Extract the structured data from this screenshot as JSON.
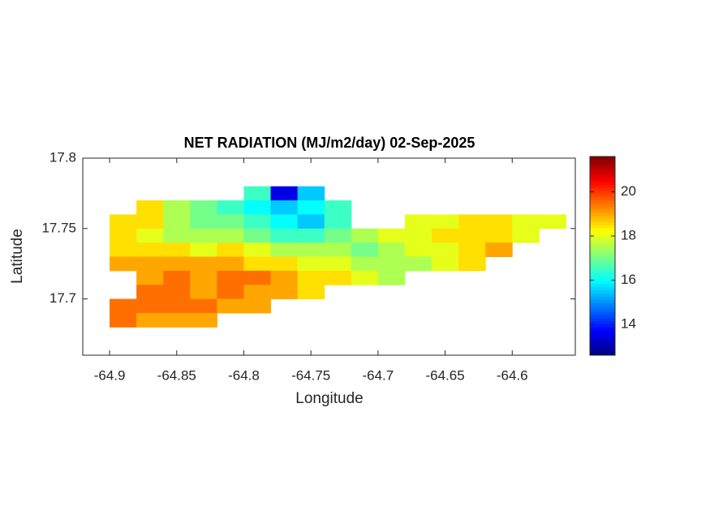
{
  "chart_data": {
    "type": "heatmap",
    "title": "NET RADIATION (MJ/m2/day) 02-Sep-2025",
    "xlabel": "Longitude",
    "ylabel": "Latitude",
    "xlim": [
      -64.92,
      -64.553
    ],
    "ylim": [
      17.66,
      17.8
    ],
    "xticks": [
      -64.9,
      -64.85,
      -64.8,
      -64.75,
      -64.7,
      -64.65,
      -64.6
    ],
    "yticks": [
      17.7,
      17.75,
      17.8
    ],
    "x": [
      -64.89,
      -64.87,
      -64.85,
      -64.83,
      -64.81,
      -64.79,
      -64.77,
      -64.75,
      -64.73,
      -64.71,
      -64.69,
      -64.67,
      -64.65,
      -64.63,
      -64.61,
      -64.59,
      -64.57
    ],
    "y": [
      17.775,
      17.765,
      17.755,
      17.745,
      17.735,
      17.725,
      17.715,
      17.705,
      17.695,
      17.685
    ],
    "z": [
      [
        null,
        null,
        null,
        null,
        null,
        16.5,
        13.5,
        15.5,
        null,
        null,
        null,
        null,
        null,
        null,
        null,
        null,
        null
      ],
      [
        null,
        18.5,
        17.5,
        17,
        16.5,
        16,
        15.5,
        16,
        16.5,
        null,
        null,
        null,
        null,
        null,
        null,
        null,
        null
      ],
      [
        18.5,
        18.5,
        17.5,
        17,
        17,
        16.5,
        16,
        15.5,
        16.5,
        null,
        null,
        18,
        18,
        18.5,
        18.5,
        18,
        18
      ],
      [
        18.5,
        18,
        17.5,
        17.5,
        17.5,
        17,
        16.5,
        16.5,
        17,
        17.5,
        18,
        18,
        18.5,
        18.5,
        18.5,
        18,
        null
      ],
      [
        18.5,
        18.5,
        18.5,
        18,
        18.5,
        18,
        17.5,
        17.5,
        17.5,
        17,
        17.5,
        18,
        18,
        18.5,
        19,
        null,
        null
      ],
      [
        19,
        19,
        19,
        19,
        19,
        18.5,
        18.5,
        18,
        18,
        17.5,
        17.5,
        17.5,
        18,
        18.5,
        null,
        null,
        null
      ],
      [
        null,
        19,
        19.5,
        19,
        19.5,
        19.5,
        19,
        18.5,
        18.5,
        18,
        17.5,
        null,
        null,
        null,
        null,
        null,
        null
      ],
      [
        null,
        19.5,
        19.5,
        19,
        19.5,
        19,
        19,
        18.5,
        null,
        null,
        null,
        null,
        null,
        null,
        null,
        null,
        null
      ],
      [
        19.5,
        19.5,
        19.5,
        19.5,
        19,
        19,
        null,
        null,
        null,
        null,
        null,
        null,
        null,
        null,
        null,
        null,
        null
      ],
      [
        19.5,
        19,
        19,
        19,
        null,
        null,
        null,
        null,
        null,
        null,
        null,
        null,
        null,
        null,
        null,
        null,
        null
      ]
    ],
    "cell": [
      0.02,
      0.01
    ],
    "colormap": "jet",
    "clim": [
      12.6,
      21.6
    ],
    "cticks": [
      14,
      16,
      18,
      20
    ]
  }
}
